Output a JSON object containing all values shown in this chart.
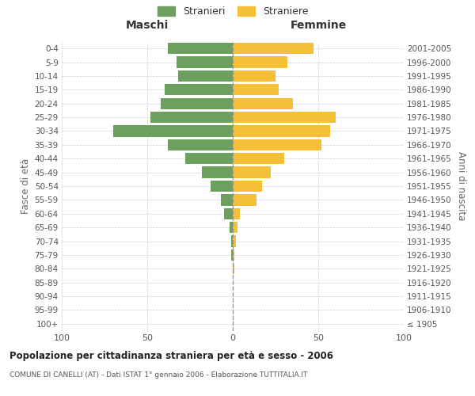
{
  "age_groups": [
    "100+",
    "95-99",
    "90-94",
    "85-89",
    "80-84",
    "75-79",
    "70-74",
    "65-69",
    "60-64",
    "55-59",
    "50-54",
    "45-49",
    "40-44",
    "35-39",
    "30-34",
    "25-29",
    "20-24",
    "15-19",
    "10-14",
    "5-9",
    "0-4"
  ],
  "birth_years": [
    "≤ 1905",
    "1906-1910",
    "1911-1915",
    "1916-1920",
    "1921-1925",
    "1926-1930",
    "1931-1935",
    "1936-1940",
    "1941-1945",
    "1946-1950",
    "1951-1955",
    "1956-1960",
    "1961-1965",
    "1966-1970",
    "1971-1975",
    "1976-1980",
    "1981-1985",
    "1986-1990",
    "1991-1995",
    "1996-2000",
    "2001-2005"
  ],
  "maschi": [
    0,
    0,
    0,
    0,
    0,
    1,
    1,
    2,
    5,
    7,
    13,
    18,
    28,
    38,
    70,
    48,
    42,
    40,
    32,
    33,
    38
  ],
  "femmine": [
    0,
    0,
    0,
    0,
    1,
    1,
    2,
    3,
    4,
    14,
    17,
    22,
    30,
    52,
    57,
    60,
    35,
    27,
    25,
    32,
    47
  ],
  "color_maschi": "#6d9f5e",
  "color_femmine": "#f5c037",
  "title": "Popolazione per cittadinanza straniera per età e sesso - 2006",
  "subtitle": "COMUNE DI CANELLI (AT) - Dati ISTAT 1° gennaio 2006 - Elaborazione TUTTITALIA.IT",
  "ylabel_left": "Fasce di età",
  "ylabel_right": "Anni di nascita",
  "xlabel_left": "Maschi",
  "xlabel_right": "Femmine",
  "xlim": 100,
  "legend_stranieri": "Stranieri",
  "legend_straniere": "Straniere",
  "background_color": "#ffffff",
  "grid_color": "#cccccc"
}
